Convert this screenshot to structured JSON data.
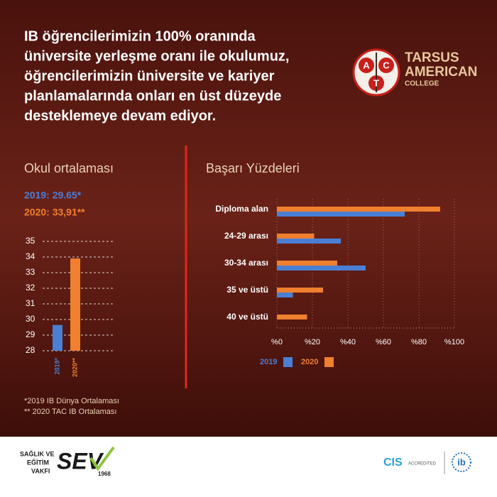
{
  "headline": [
    "IB öğrencilerimizin 100% oranında",
    "üniversite yerleşme oranı ile okulumuz,",
    "öğrencilerimizin üniversite ve kariyer",
    "planlamalarında onları en üst düzeyde",
    "desteklemeye devam ediyor."
  ],
  "logo": {
    "letters": [
      "A",
      "C",
      "T"
    ],
    "name": [
      "TARSUS",
      "AMERICAN",
      "COLLEGE"
    ]
  },
  "chart_data": [
    {
      "type": "bar",
      "title": "Okul ortalaması",
      "annotations": [
        "2019: 29.65*",
        "2020: 33,91**"
      ],
      "categories": [
        "2019*",
        "2020**"
      ],
      "values": [
        29.65,
        33.91
      ],
      "colors": [
        "#4a7fd4",
        "#f07f2e"
      ],
      "ylim": [
        28,
        35
      ],
      "yticks": [
        28,
        29,
        30,
        31,
        32,
        33,
        34,
        35
      ],
      "grid": true
    },
    {
      "type": "hbar",
      "title": "Başarı Yüzdeleri",
      "categories": [
        "Diploma alan",
        "24-29 arası",
        "30-34 arası",
        "35 ve üstü",
        "40 ve üstü"
      ],
      "series": [
        {
          "name": "2019",
          "color": "#4a7fd4",
          "values": [
            72,
            36,
            50,
            9,
            0
          ]
        },
        {
          "name": "2020",
          "color": "#f07f2e",
          "values": [
            92,
            21,
            34,
            26,
            17
          ]
        }
      ],
      "xlim": [
        0,
        100
      ],
      "xticks": [
        {
          "value": 0,
          "label": "%0"
        },
        {
          "value": 20,
          "label": "%20"
        },
        {
          "value": 40,
          "label": "%40"
        },
        {
          "value": 60,
          "label": "%60"
        },
        {
          "value": 80,
          "label": "%80"
        },
        {
          "value": 100,
          "label": "%100"
        }
      ],
      "grid": true,
      "legend": "bottom"
    }
  ],
  "footnotes": [
    "*2019 IB Dünya Ortalaması",
    "** 2020 TAC IB Ortalaması"
  ],
  "footer": {
    "sev_lines": [
      "SAĞLIK VE",
      "EĞİTİM",
      "VAKFI"
    ],
    "sev": "SEV",
    "sev_year": "1968",
    "cis": "CIS",
    "accredited": "ACCREDITED",
    "ib": "ib"
  }
}
